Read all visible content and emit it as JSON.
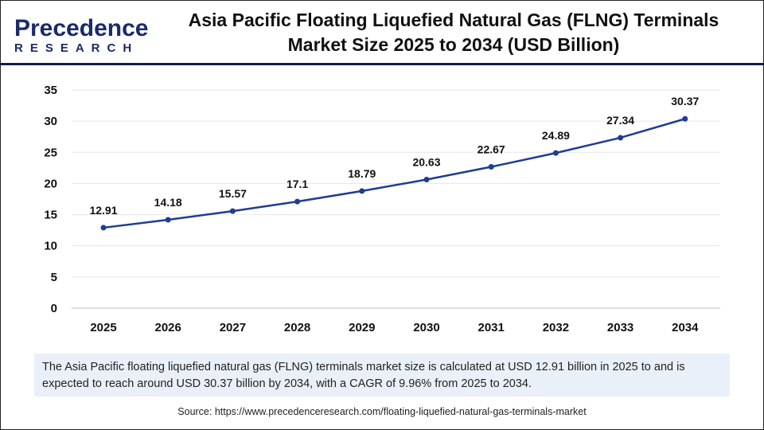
{
  "logo": {
    "line1": "Precedence",
    "line2": "RESEARCH"
  },
  "chart_data": {
    "type": "line",
    "title": "Asia Pacific Floating Liquefied Natural Gas (FLNG) Terminals Market Size 2025 to 2034 (USD Billion)",
    "categories": [
      "2025",
      "2026",
      "2027",
      "2028",
      "2029",
      "2030",
      "2031",
      "2032",
      "2033",
      "2034"
    ],
    "values": [
      12.91,
      14.18,
      15.57,
      17.1,
      18.79,
      20.63,
      22.67,
      24.89,
      27.34,
      30.37
    ],
    "data_labels": [
      "12.91",
      "14.18",
      "15.57",
      "17.1",
      "18.79",
      "20.63",
      "22.67",
      "24.89",
      "27.34",
      "30.37"
    ],
    "yticks": [
      "0",
      "5",
      "10",
      "15",
      "20",
      "25",
      "30",
      "35"
    ],
    "ylim": [
      0,
      35
    ],
    "grid": true,
    "line_color": "#1f3c95"
  },
  "note": "The Asia Pacific floating liquefied natural gas (FLNG) terminals market size is calculated at USD 12.91 billion in 2025 to and is expected to reach around USD 30.37 billion by 2034, with a CAGR of 9.96% from 2025 to 2034.",
  "source": "Source: https://www.precedenceresearch.com/floating-liquefied-natural-gas-terminals-market"
}
